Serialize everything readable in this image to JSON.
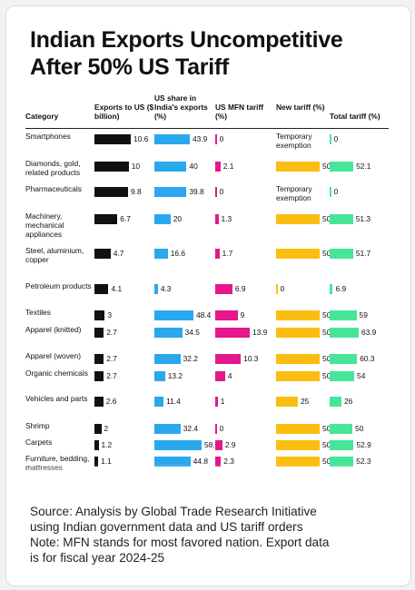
{
  "title_lines": [
    "Indian Exports Uncompetitive",
    "After 50% US Tariff"
  ],
  "chart_data": {
    "type": "table",
    "title": "Indian Exports Uncompetitive After 50% US Tariff",
    "columns": [
      {
        "key": "category",
        "label": "Category"
      },
      {
        "key": "exports",
        "label": "Exports to US ($ billion)",
        "max": 10.6,
        "color": "#111111"
      },
      {
        "key": "us_share",
        "label": "US share in India's exports (%)",
        "max": 58.6,
        "color": "#2aa8ee"
      },
      {
        "key": "mfn",
        "label": "US MFN tariff (%)",
        "max": 13.9,
        "color": "#e6168c"
      },
      {
        "key": "new_tariff",
        "label": "New tariff (%)",
        "max": 50,
        "color": "#fbbd0f"
      },
      {
        "key": "total",
        "label": "Total tariff (%)",
        "max": 63.9,
        "color": "#47e59a"
      }
    ],
    "rows": [
      {
        "category": "Smartphones",
        "exports": 10.6,
        "us_share": 43.9,
        "mfn": 0,
        "new_tariff": null,
        "new_tariff_text": "Temporary exemption",
        "total": 0
      },
      {
        "category": "Diamonds, gold, related products",
        "exports": 10,
        "us_share": 40,
        "mfn": 2.1,
        "new_tariff": 50,
        "total": 52.1
      },
      {
        "category": "Pharmaceuticals",
        "exports": 9.8,
        "us_share": 39.8,
        "mfn": 0,
        "new_tariff": null,
        "new_tariff_text": "Temporary exemption",
        "total": 0
      },
      {
        "category": "Machinery, mechanical appliances",
        "exports": 6.7,
        "us_share": 20,
        "mfn": 1.3,
        "new_tariff": 50,
        "total": 51.3
      },
      {
        "category": "Steel, aluminium, copper",
        "exports": 4.7,
        "us_share": 16.6,
        "mfn": 1.7,
        "new_tariff": 50,
        "total": 51.7
      },
      {
        "category": "Petroleum products",
        "exports": 4.1,
        "us_share": 4.3,
        "mfn": 6.9,
        "new_tariff": 0,
        "total": 6.9
      },
      {
        "category": "Textiles",
        "exports": 3,
        "us_share": 48.4,
        "mfn": 9,
        "new_tariff": 50,
        "total": 59
      },
      {
        "category": "Apparel (knitted)",
        "exports": 2.7,
        "us_share": 34.5,
        "mfn": 13.9,
        "new_tariff": 50,
        "total": 63.9
      },
      {
        "category": "Apparel (woven)",
        "exports": 2.7,
        "us_share": 32.2,
        "mfn": 10.3,
        "new_tariff": 50,
        "total": 60.3
      },
      {
        "category": "Organic chemicals",
        "exports": 2.7,
        "us_share": 13.2,
        "mfn": 4,
        "new_tariff": 50,
        "total": 54
      },
      {
        "category": "Vehicles and parts",
        "exports": 2.6,
        "us_share": 11.4,
        "mfn": 1,
        "new_tariff": 25,
        "total": 26
      },
      {
        "category": "Shrimp",
        "exports": 2,
        "us_share": 32.4,
        "mfn": 0,
        "new_tariff": 50,
        "total": 50
      },
      {
        "category": "Carpets",
        "exports": 1.2,
        "us_share": 58.6,
        "mfn": 2.9,
        "new_tariff": 50,
        "total": 52.9
      },
      {
        "category": "Furniture, bedding, mattresses",
        "exports": 1.1,
        "us_share": 44.8,
        "mfn": 2.3,
        "new_tariff": 50,
        "total": 52.3
      }
    ]
  },
  "footer_lines": [
    "Source: Analysis by Global Trade Research Initiative",
    "using Indian government data and US tariff orders",
    "Note: MFN stands for most favored nation. Export data",
    "is for fiscal year 2024-25"
  ]
}
